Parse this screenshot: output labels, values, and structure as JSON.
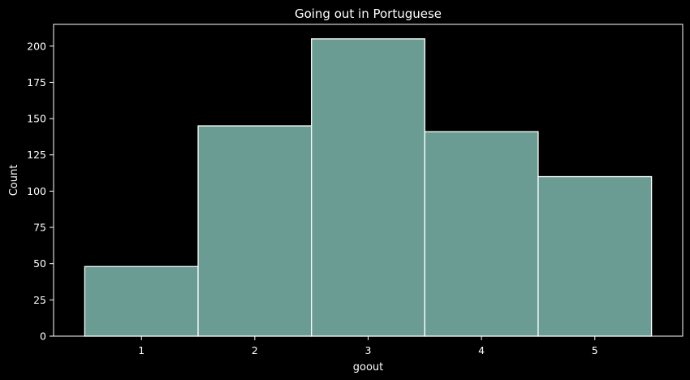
{
  "chart_data": {
    "type": "bar",
    "title": "Going out in Portuguese",
    "xlabel": "goout",
    "ylabel": "Count",
    "categories": [
      "1",
      "2",
      "3",
      "4",
      "5"
    ],
    "values": [
      48,
      145,
      205,
      141,
      110
    ],
    "xlim": [
      0.225,
      5.775
    ],
    "ylim": [
      0,
      215
    ],
    "yticks": [
      0,
      25,
      50,
      75,
      100,
      125,
      150,
      175,
      200
    ],
    "grid": false,
    "bar_color": "#6a9c93",
    "edge_color": "#ffffff",
    "background": "#000000"
  }
}
